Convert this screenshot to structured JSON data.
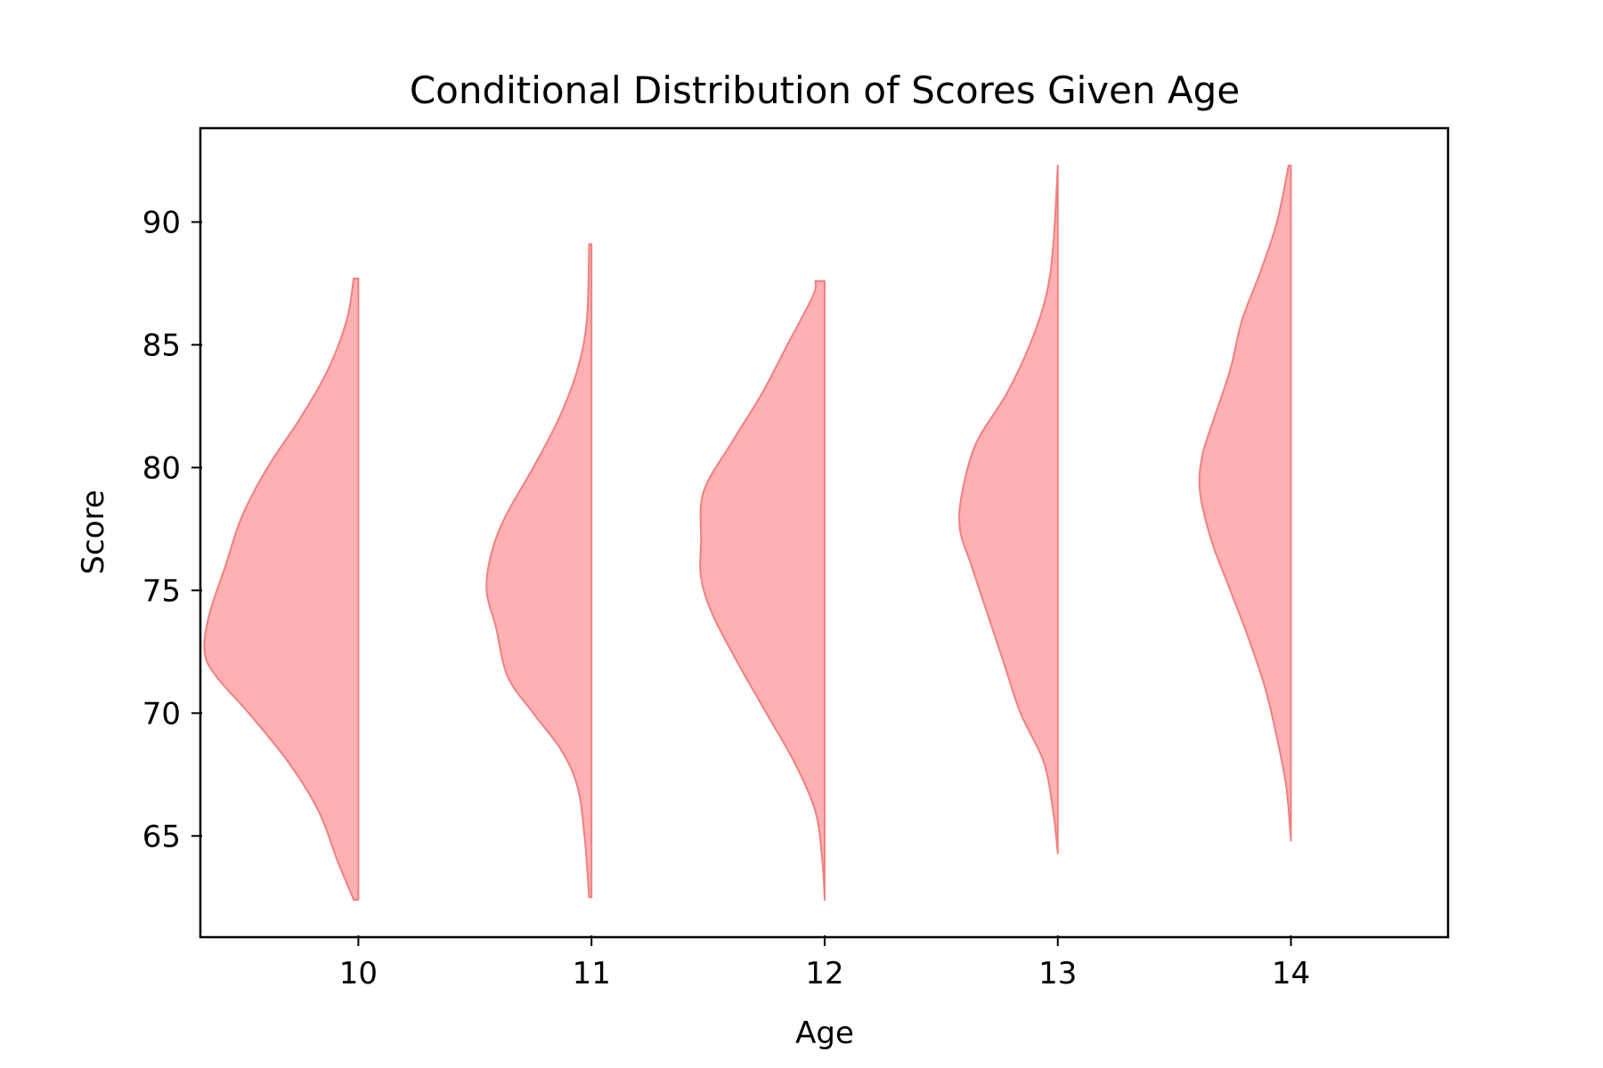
{
  "chart_data": {
    "type": "violin",
    "title": "Conditional Distribution of Scores Given Age",
    "xlabel": "Age",
    "ylabel": "Score",
    "categories": [
      "10",
      "11",
      "12",
      "13",
      "14"
    ],
    "x_values": [
      10,
      11,
      12,
      13,
      14
    ],
    "xlim": [
      9.33,
      14.67
    ],
    "ylim": [
      60.95,
      93.75
    ],
    "yticks": [
      65,
      70,
      75,
      80,
      85,
      90
    ],
    "violin_side": "left",
    "colors": {
      "fill": "#ffb0b2",
      "edge": "#f08080"
    },
    "grid": false,
    "series": [
      {
        "category": "10",
        "y_min": 62.4,
        "y_max": 87.7,
        "density_profile": [
          [
            62.4,
            0.02
          ],
          [
            64.0,
            0.09
          ],
          [
            66.0,
            0.17
          ],
          [
            68.0,
            0.3
          ],
          [
            70.0,
            0.47
          ],
          [
            71.5,
            0.61
          ],
          [
            72.5,
            0.66
          ],
          [
            74.0,
            0.64
          ],
          [
            76.0,
            0.57
          ],
          [
            78.0,
            0.5
          ],
          [
            80.0,
            0.39
          ],
          [
            82.0,
            0.25
          ],
          [
            84.0,
            0.13
          ],
          [
            86.0,
            0.05
          ],
          [
            87.7,
            0.02
          ]
        ]
      },
      {
        "category": "11",
        "y_min": 62.5,
        "y_max": 89.1,
        "density_profile": [
          [
            62.5,
            0.01
          ],
          [
            65.0,
            0.03
          ],
          [
            67.0,
            0.06
          ],
          [
            68.5,
            0.13
          ],
          [
            70.0,
            0.25
          ],
          [
            71.5,
            0.36
          ],
          [
            73.5,
            0.41
          ],
          [
            75.0,
            0.45
          ],
          [
            76.5,
            0.43
          ],
          [
            78.0,
            0.37
          ],
          [
            80.0,
            0.25
          ],
          [
            82.0,
            0.14
          ],
          [
            84.0,
            0.06
          ],
          [
            86.0,
            0.02
          ],
          [
            89.1,
            0.01
          ]
        ]
      },
      {
        "category": "12",
        "y_min": 62.4,
        "y_max": 87.6,
        "density_profile": [
          [
            62.4,
            0.0
          ],
          [
            64.0,
            0.01
          ],
          [
            66.0,
            0.04
          ],
          [
            68.0,
            0.13
          ],
          [
            70.0,
            0.25
          ],
          [
            72.0,
            0.37
          ],
          [
            74.0,
            0.48
          ],
          [
            75.5,
            0.53
          ],
          [
            77.0,
            0.53
          ],
          [
            79.0,
            0.52
          ],
          [
            81.0,
            0.4
          ],
          [
            83.0,
            0.27
          ],
          [
            85.0,
            0.16
          ],
          [
            87.0,
            0.05
          ],
          [
            87.6,
            0.04
          ]
        ]
      },
      {
        "category": "13",
        "y_min": 64.3,
        "y_max": 92.3,
        "density_profile": [
          [
            64.3,
            0.0
          ],
          [
            66.0,
            0.02
          ],
          [
            68.0,
            0.06
          ],
          [
            70.0,
            0.16
          ],
          [
            72.0,
            0.23
          ],
          [
            74.0,
            0.3
          ],
          [
            76.0,
            0.37
          ],
          [
            77.5,
            0.42
          ],
          [
            79.0,
            0.41
          ],
          [
            81.0,
            0.35
          ],
          [
            83.0,
            0.22
          ],
          [
            85.0,
            0.12
          ],
          [
            87.0,
            0.05
          ],
          [
            89.0,
            0.02
          ],
          [
            92.3,
            0.0
          ]
        ]
      },
      {
        "category": "14",
        "y_min": 64.8,
        "y_max": 92.3,
        "density_profile": [
          [
            64.8,
            0.0
          ],
          [
            67.0,
            0.02
          ],
          [
            69.0,
            0.06
          ],
          [
            71.0,
            0.11
          ],
          [
            73.0,
            0.18
          ],
          [
            75.0,
            0.26
          ],
          [
            77.0,
            0.34
          ],
          [
            79.0,
            0.39
          ],
          [
            80.5,
            0.38
          ],
          [
            82.0,
            0.33
          ],
          [
            84.0,
            0.26
          ],
          [
            86.0,
            0.21
          ],
          [
            88.0,
            0.13
          ],
          [
            90.0,
            0.06
          ],
          [
            92.3,
            0.01
          ]
        ]
      }
    ]
  }
}
